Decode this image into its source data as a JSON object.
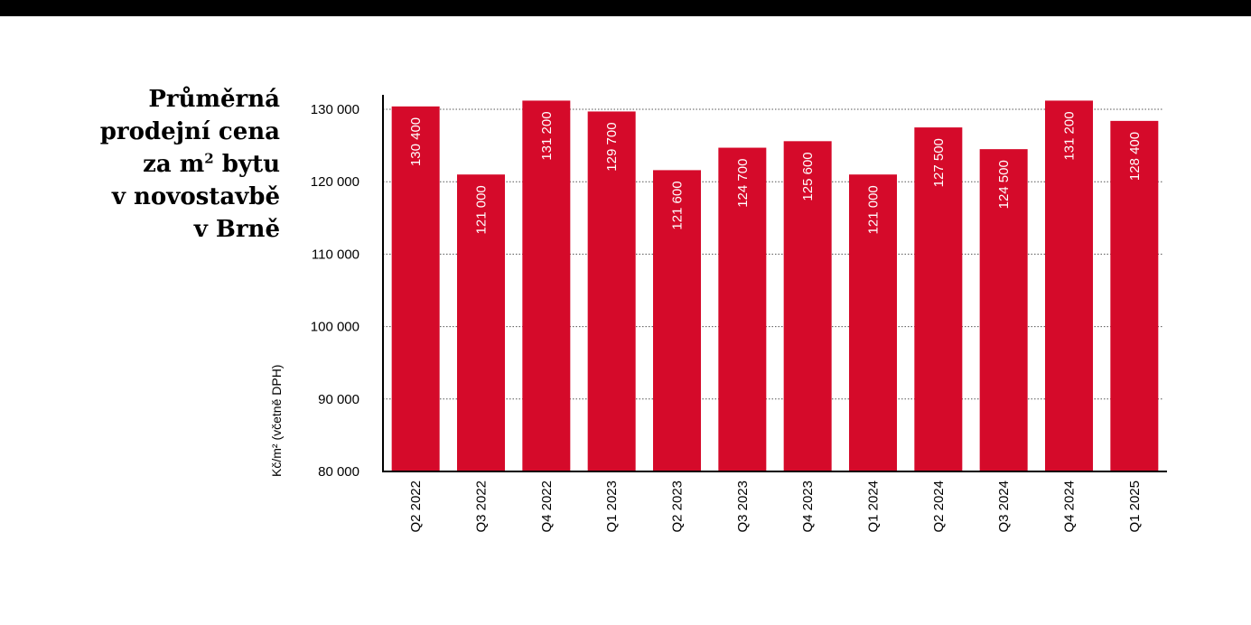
{
  "title": {
    "line1": "Průměrná",
    "line2": "prodejní cena",
    "line3_pre": "za m",
    "line3_sup": "2",
    "line3_post": " bytu",
    "line4": "v novostavbě",
    "line5": "v Brně"
  },
  "colors": {
    "bar": "#d50a2a",
    "topbar": "#000000"
  },
  "chart_data": {
    "type": "bar",
    "categories": [
      "Q2 2022",
      "Q3 2022",
      "Q4 2022",
      "Q1 2023",
      "Q2 2023",
      "Q3 2023",
      "Q4 2023",
      "Q1 2024",
      "Q2 2024",
      "Q3 2024",
      "Q4 2024",
      "Q1 2025"
    ],
    "values": [
      130400,
      121000,
      131200,
      129700,
      121600,
      124700,
      125600,
      121000,
      127500,
      124500,
      131200,
      128400
    ],
    "value_labels": [
      "130 400",
      "121 000",
      "131 200",
      "129 700",
      "121 600",
      "124 700",
      "125 600",
      "121 000",
      "127 500",
      "124 500",
      "131 200",
      "128 400"
    ],
    "yticks": [
      80000,
      90000,
      100000,
      110000,
      120000,
      130000
    ],
    "ytick_labels": [
      "80 000",
      "90 000",
      "100 000",
      "110 000",
      "120 000",
      "130 000"
    ],
    "ylim": [
      80000,
      132000
    ],
    "ylabel": "Kč/m² (včetně DPH)",
    "xlabel": "",
    "grid": "horizontal dotted"
  }
}
